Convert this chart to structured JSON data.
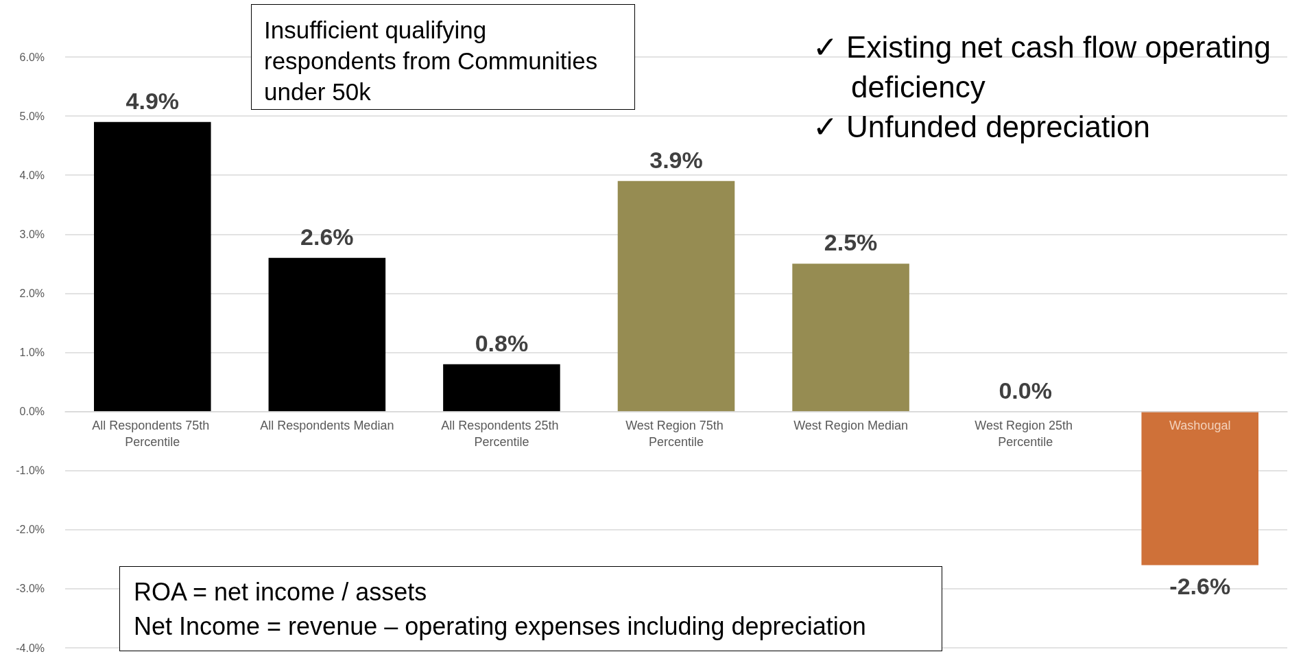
{
  "chart_data": {
    "type": "bar",
    "categories": [
      "All Respondents 75th Percentile",
      "All Respondents Median",
      "All Respondents 25th Percentile",
      "West Region 75th Percentile",
      "West Region Median",
      "West Region 25th Percentile",
      "Washougal"
    ],
    "values": [
      4.9,
      2.6,
      0.8,
      3.9,
      2.5,
      0.0,
      -2.6
    ],
    "colors": [
      "#000000",
      "#000000",
      "#000000",
      "#968c52",
      "#968c52",
      "#968c52",
      "#cf7139"
    ],
    "value_labels": [
      "4.9%",
      "2.6%",
      "0.8%",
      "3.9%",
      "2.5%",
      "0.0%",
      "-2.6%"
    ],
    "ylim": [
      -4,
      6
    ],
    "yticks": [
      {
        "value": -4,
        "label": "-4.0%"
      },
      {
        "value": -3,
        "label": "-3.0%"
      },
      {
        "value": -2,
        "label": "-2.0%"
      },
      {
        "value": -1,
        "label": "-1.0%"
      },
      {
        "value": 0,
        "label": "0.0%"
      },
      {
        "value": 1,
        "label": "1.0%"
      },
      {
        "value": 2,
        "label": "2.0%"
      },
      {
        "value": 3,
        "label": "3.0%"
      },
      {
        "value": 4,
        "label": "4.0%"
      },
      {
        "value": 5,
        "label": "5.0%"
      },
      {
        "value": 6,
        "label": "6.0%"
      }
    ],
    "grid": "y",
    "annotations": [
      "Insufficient qualifying respondents from Communities under 50k",
      "✓  Existing net cash flow operating deficiency",
      "✓  Unfunded depreciation",
      "ROA = net income / assets",
      "Net Income = revenue – operating expenses including depreciation"
    ]
  }
}
